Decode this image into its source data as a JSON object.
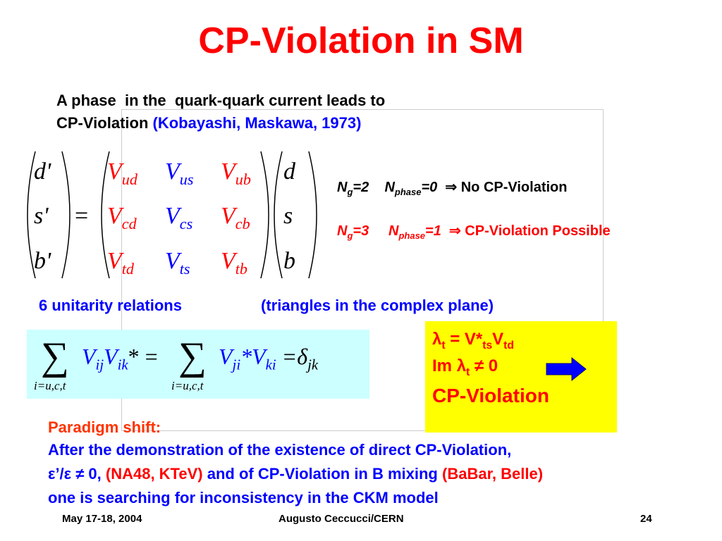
{
  "title": "CP-Violation in SM",
  "intro": {
    "line1": "A phase  in the  quark-quark current leads to",
    "line2": "CP-Violation",
    "citation": "(Kobayashi, Maskawa, 1973)"
  },
  "matrix": {
    "lhs": [
      "d'",
      "s'",
      "b'"
    ],
    "equals": "=",
    "symbol": "V",
    "ckm": [
      [
        "ud",
        "us",
        "ub"
      ],
      [
        "cd",
        "cs",
        "cb"
      ],
      [
        "td",
        "ts",
        "tb"
      ]
    ],
    "rhs": [
      "d",
      "s",
      "b"
    ]
  },
  "cases": [
    {
      "n": "N",
      "g": "g",
      "g_value": "=2",
      "phase": "phase",
      "phase_value": "=0",
      "result": "⇒ No CP-Violation"
    },
    {
      "n": "N",
      "g": "g",
      "g_value": "=3",
      "phase": "phase",
      "phase_value": "=1",
      "result": "⇒ CP-Violation Possible"
    }
  ],
  "unitarity": {
    "count": "6 unitarity relations",
    "note": "(triangles in the complex plane)"
  },
  "sum_formula": {
    "sum": "∑",
    "range": "i=u,c,t",
    "v": "V",
    "ij": "ij",
    "ik": "ik",
    "conj_eq": "* =",
    "ji": "ji",
    "conj_v": "*V",
    "ki": "ki",
    "delta": "=δ",
    "jk": "jk"
  },
  "box": {
    "lambda": "λ",
    "t": "t",
    "eq": " = V*",
    "ts": "ts",
    "v": "V",
    "td": "td",
    "im": "Im ",
    "neq": " ≠ 0",
    "cpv": "CP-Violation"
  },
  "paradigm": {
    "heading": "Paradigm shift:",
    "line1": "After the demonstration of the existence of direct CP-Violation,",
    "eps": "ε’/ε ≠ 0, ",
    "exp1": "(NA48, KTeV)",
    "mid": " and of CP-Violation in B mixing ",
    "exp2": "(BaBar, Belle)",
    "line3": "one is searching for inconsistency in the CKM model"
  },
  "footer": {
    "date": "May 17-18, 2004",
    "author": "Augusto Ceccucci/CERN",
    "page": 24
  }
}
